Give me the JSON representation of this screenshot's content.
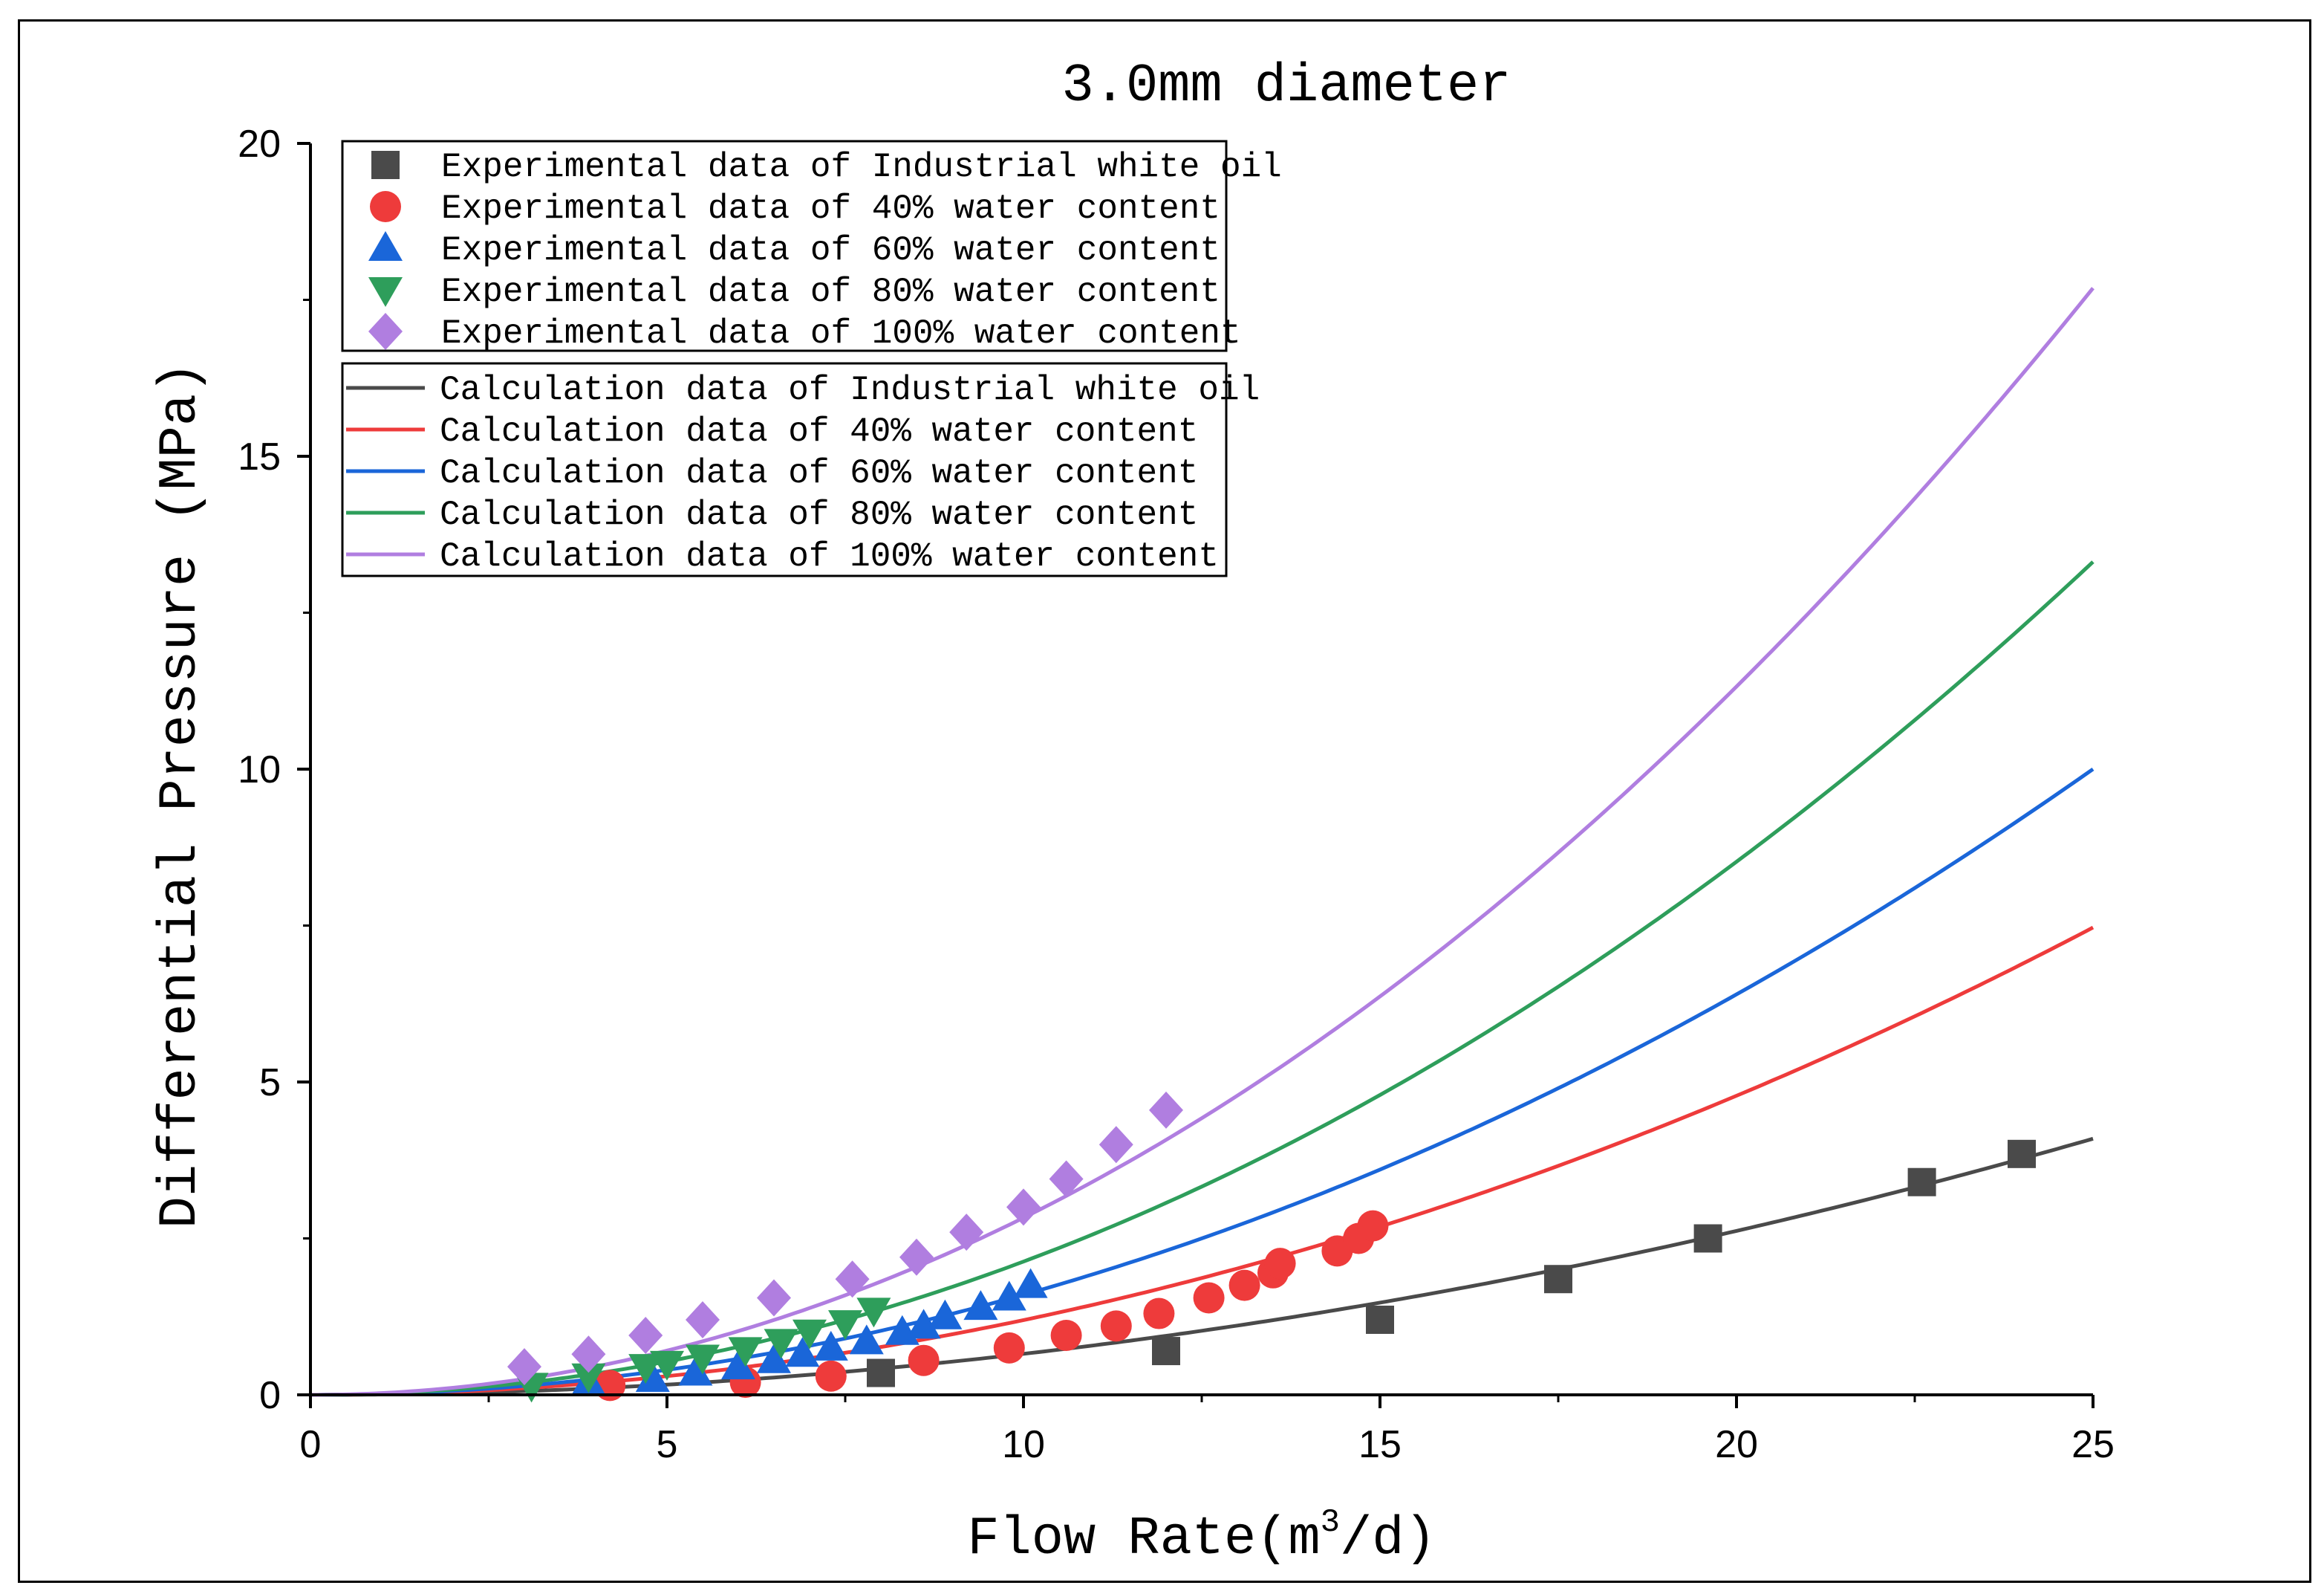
{
  "chart_data": {
    "type": "line+scatter",
    "title": "3.0mm diameter",
    "xlabel": "Flow Rate(m³/d)",
    "xlabel_parts": {
      "base": "Flow Rate(m",
      "sup": "3",
      "tail": "/d)"
    },
    "ylabel": "Differential Pressure (MPa)",
    "xlim": [
      0,
      25
    ],
    "ylim": [
      0,
      20
    ],
    "xticks": [
      0,
      5,
      10,
      15,
      20,
      25
    ],
    "yticks": [
      0,
      5,
      10,
      15,
      20
    ],
    "xtick_labels": [
      "0",
      "5",
      "10",
      "15",
      "20",
      "25"
    ],
    "ytick_labels": [
      "0",
      "5",
      "10",
      "15",
      "20"
    ],
    "grid": false,
    "legend_placement": "top-left",
    "scatter_series": [
      {
        "name": "Experimental data of Industrial white oil",
        "marker": "square",
        "color": "#4a4a4a",
        "x": [
          8.0,
          12.0,
          15.0,
          17.5,
          19.6,
          22.6,
          24.0
        ],
        "y": [
          0.35,
          0.7,
          1.2,
          1.85,
          2.5,
          3.4,
          3.85
        ]
      },
      {
        "name": "Experimental data of 40% water content",
        "marker": "circle",
        "color": "#ee3b3b",
        "x": [
          4.2,
          6.1,
          7.3,
          8.6,
          9.8,
          10.6,
          11.3,
          11.9,
          12.6,
          13.1,
          13.5,
          13.6,
          14.4,
          14.7,
          14.9
        ],
        "y": [
          0.15,
          0.2,
          0.3,
          0.55,
          0.75,
          0.95,
          1.1,
          1.3,
          1.55,
          1.75,
          1.95,
          2.1,
          2.3,
          2.5,
          2.7
        ]
      },
      {
        "name": "Experimental data of 60% water content",
        "marker": "triangle-up",
        "color": "#1a66d9",
        "x": [
          3.9,
          4.8,
          5.4,
          6.0,
          6.5,
          6.9,
          7.3,
          7.8,
          8.3,
          8.6,
          8.9,
          9.4,
          9.8,
          10.1
        ],
        "y": [
          0.2,
          0.25,
          0.35,
          0.45,
          0.55,
          0.65,
          0.75,
          0.85,
          1.0,
          1.1,
          1.25,
          1.4,
          1.55,
          1.75
        ]
      },
      {
        "name": "Experimental data of 80% water content",
        "marker": "triangle-down",
        "color": "#2e9e5b",
        "x": [
          3.1,
          3.9,
          4.7,
          5.0,
          5.5,
          6.1,
          6.6,
          7.0,
          7.5,
          7.9
        ],
        "y": [
          0.15,
          0.3,
          0.45,
          0.5,
          0.6,
          0.72,
          0.85,
          1.0,
          1.15,
          1.35
        ]
      },
      {
        "name": "Experimental data of 100% water content",
        "marker": "diamond",
        "color": "#b07ee0",
        "x": [
          3.0,
          3.9,
          4.7,
          5.5,
          6.5,
          7.6,
          8.5,
          9.2,
          10.0,
          10.6,
          11.3,
          12.0
        ],
        "y": [
          0.45,
          0.65,
          0.95,
          1.2,
          1.55,
          1.85,
          2.2,
          2.6,
          3.0,
          3.45,
          4.0,
          4.55
        ]
      }
    ],
    "line_series": [
      {
        "name": "Calculation data of Industrial white oil",
        "color": "#4a4a4a",
        "coef": 0.00655,
        "exponent": 2
      },
      {
        "name": "Calculation data of 40% water content",
        "color": "#ee3b3b",
        "coef": 0.01195,
        "exponent": 2
      },
      {
        "name": "Calculation data of 60% water content",
        "color": "#1a66d9",
        "coef": 0.016,
        "exponent": 2
      },
      {
        "name": "Calculation data of 80% water content",
        "color": "#2e9e5b",
        "coef": 0.0213,
        "exponent": 2
      },
      {
        "name": "Calculation data of 100% water content",
        "color": "#b07ee0",
        "coef": 0.0283,
        "exponent": 2
      }
    ]
  }
}
